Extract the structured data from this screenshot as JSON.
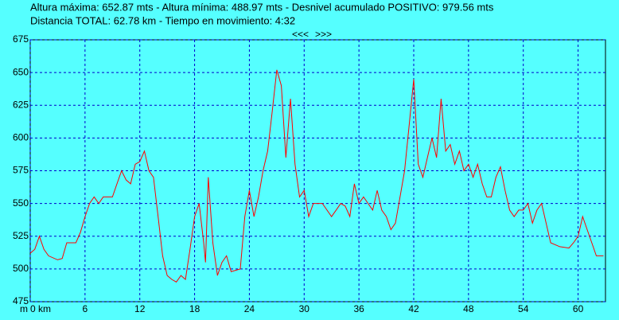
{
  "header": {
    "line1": "Altura máxima: 652.87 mts - Altura mínima: 488.97 mts - Desnivel acumulado POSITIVO: 979.56 mts",
    "line2": "Distancia TOTAL: 62.78 km - Tiempo en movimiento: 4:32",
    "prev": "<<<",
    "next": ">>>"
  },
  "chart_data": {
    "type": "line",
    "y_label": "m",
    "color": "#ff0000",
    "grid": true,
    "xlim": [
      0,
      63
    ],
    "xticks": [
      {
        "value": 0,
        "label": "0 km"
      },
      6,
      12,
      18,
      24,
      30,
      36,
      42,
      48,
      54,
      60
    ],
    "ylim": [
      475,
      675
    ],
    "yticks": [
      475,
      500,
      525,
      550,
      575,
      600,
      625,
      650,
      675
    ],
    "x": [
      0,
      0.5,
      1,
      1.5,
      2,
      3,
      3.5,
      4,
      5,
      5.5,
      6,
      6.5,
      7,
      7.5,
      8,
      9,
      9.5,
      10,
      10.5,
      11,
      11.5,
      12,
      12.5,
      13,
      13.5,
      14,
      14.5,
      15,
      15.5,
      16,
      16.5,
      17,
      17.5,
      18,
      18.5,
      19,
      19.2,
      19.5,
      20,
      20.5,
      21,
      21.5,
      22,
      23,
      23.5,
      24,
      24.5,
      25,
      25.5,
      26,
      26.5,
      27,
      27.5,
      28,
      28.5,
      29,
      29.5,
      30,
      30.5,
      31,
      32,
      33,
      33.5,
      34,
      34.5,
      35,
      35.5,
      36,
      36.5,
      37,
      37.5,
      38,
      38.5,
      39,
      39.5,
      40,
      40.5,
      41,
      41.5,
      42,
      42.5,
      43,
      43.5,
      44,
      44.5,
      45,
      45.5,
      46,
      46.5,
      47,
      47.5,
      48,
      48.5,
      49,
      49.5,
      50,
      50.5,
      51,
      51.5,
      52,
      52.5,
      53,
      53.5,
      54,
      54.5,
      55,
      55.5,
      56,
      56.5,
      57,
      58,
      59,
      59.5,
      60,
      60.5,
      61,
      61.5,
      62,
      62.78
    ],
    "values": [
      512,
      515,
      525,
      515,
      510,
      507,
      508,
      520,
      520,
      528,
      540,
      550,
      555,
      550,
      555,
      555,
      565,
      575,
      568,
      565,
      580,
      582,
      590,
      575,
      570,
      540,
      510,
      495,
      492,
      490,
      495,
      492,
      515,
      540,
      550,
      520,
      505,
      570,
      520,
      495,
      505,
      510,
      498,
      500,
      540,
      560,
      540,
      555,
      575,
      590,
      620,
      652,
      640,
      585,
      630,
      580,
      555,
      560,
      540,
      550,
      550,
      540,
      545,
      550,
      548,
      540,
      565,
      550,
      555,
      550,
      545,
      560,
      545,
      540,
      530,
      535,
      555,
      575,
      610,
      645,
      580,
      570,
      585,
      600,
      585,
      630,
      590,
      595,
      580,
      590,
      575,
      580,
      570,
      580,
      565,
      555,
      555,
      570,
      578,
      560,
      545,
      540,
      545,
      545,
      550,
      535,
      545,
      550,
      535,
      520,
      517,
      516,
      520,
      525,
      540,
      530,
      520,
      510,
      510
    ]
  }
}
